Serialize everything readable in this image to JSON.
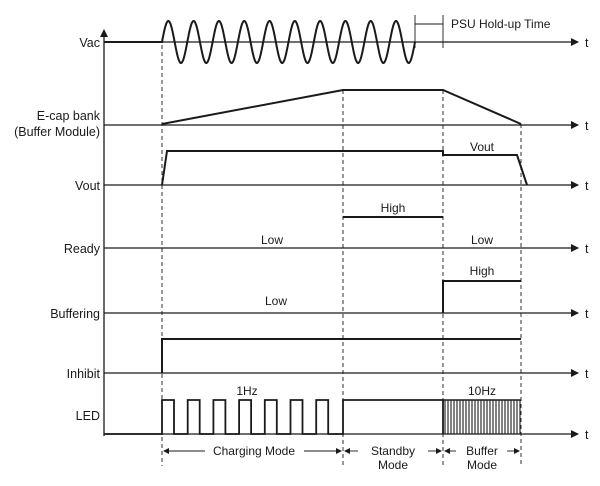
{
  "signals": [
    {
      "id": "vac",
      "label": "Vac"
    },
    {
      "id": "ecap",
      "label_lines": [
        "E-cap bank",
        "(Buffer Module)"
      ]
    },
    {
      "id": "vout",
      "label": "Vout"
    },
    {
      "id": "ready",
      "label": "Ready"
    },
    {
      "id": "buffering",
      "label": "Buffering"
    },
    {
      "id": "inhibit",
      "label": "Inhibit"
    },
    {
      "id": "led",
      "label": "LED"
    }
  ],
  "axis_label": "t",
  "annotations": {
    "psu_holdup": "PSU Hold-up Time",
    "vout_buffer": "Vout",
    "ready_high": "High",
    "ready_low_1": "Low",
    "ready_low_2": "Low",
    "buffering_high": "High",
    "buffering_low": "Low",
    "led_1hz": "1Hz",
    "led_10hz": "10Hz"
  },
  "modes": [
    {
      "id": "charging",
      "lines": [
        "Charging Mode"
      ]
    },
    {
      "id": "standby",
      "lines": [
        "Standby",
        "Mode"
      ]
    },
    {
      "id": "buffer",
      "lines": [
        "Buffer",
        "Mode"
      ]
    }
  ]
}
